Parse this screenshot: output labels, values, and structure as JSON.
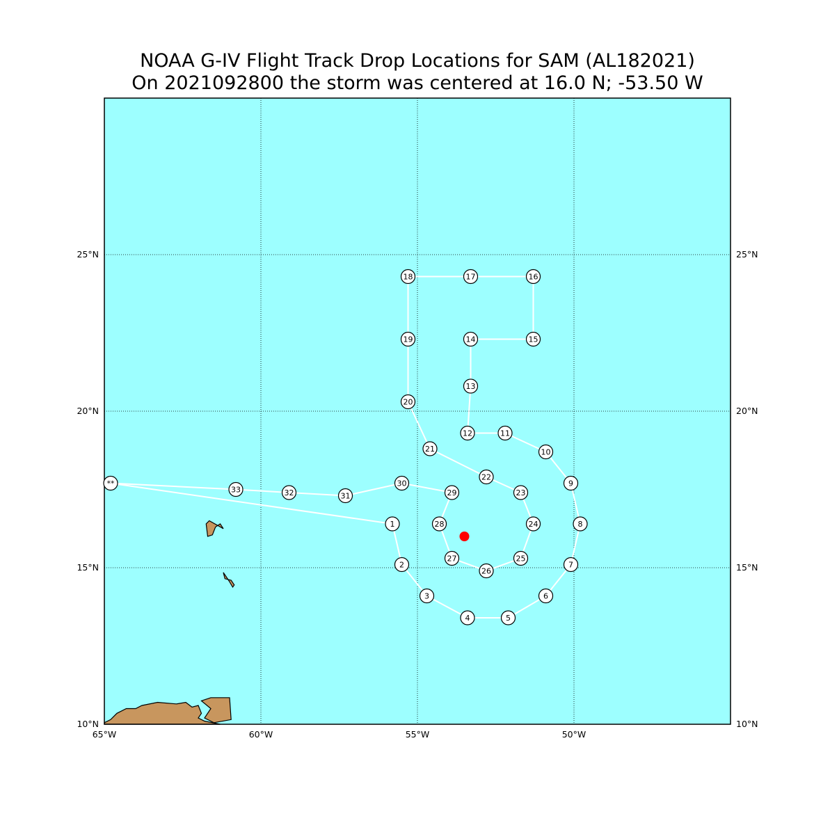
{
  "title": {
    "line1": "NOAA G-IV Flight Track Drop Locations for SAM (AL182021)",
    "line2": "On 2021092800 the storm was centered at 16.0 N; -53.50 W"
  },
  "axes": {
    "lon_range": [
      -65,
      -45
    ],
    "lat_range": [
      10,
      30
    ],
    "lon_ticks": [
      {
        "value": -65,
        "label": "65°W"
      },
      {
        "value": -60,
        "label": "60°W"
      },
      {
        "value": -55,
        "label": "55°W"
      },
      {
        "value": -50,
        "label": "50°W"
      }
    ],
    "lat_ticks": [
      {
        "value": 10,
        "label": "10°N"
      },
      {
        "value": 15,
        "label": "15°N"
      },
      {
        "value": 20,
        "label": "20°N"
      },
      {
        "value": 25,
        "label": "25°N"
      }
    ],
    "grid": "dotted"
  },
  "colors": {
    "ocean": "#9dffff",
    "land": "#c8965e",
    "track": "#ffffff",
    "storm_center": "#ff0000"
  },
  "storm_center": {
    "lat": 16.0,
    "lon": -53.5
  },
  "start_marker": {
    "label": "**",
    "lat": 17.7,
    "lon": -64.8
  },
  "drops": [
    {
      "label": "1",
      "lat": 16.4,
      "lon": -55.8
    },
    {
      "label": "2",
      "lat": 15.1,
      "lon": -55.5
    },
    {
      "label": "3",
      "lat": 14.1,
      "lon": -54.7
    },
    {
      "label": "4",
      "lat": 13.4,
      "lon": -53.4
    },
    {
      "label": "5",
      "lat": 13.4,
      "lon": -52.1
    },
    {
      "label": "6",
      "lat": 14.1,
      "lon": -50.9
    },
    {
      "label": "7",
      "lat": 15.1,
      "lon": -50.1
    },
    {
      "label": "8",
      "lat": 16.4,
      "lon": -49.8
    },
    {
      "label": "9",
      "lat": 17.7,
      "lon": -50.1
    },
    {
      "label": "10",
      "lat": 18.7,
      "lon": -50.9
    },
    {
      "label": "11",
      "lat": 19.3,
      "lon": -52.2
    },
    {
      "label": "12",
      "lat": 19.3,
      "lon": -53.4
    },
    {
      "label": "13",
      "lat": 20.8,
      "lon": -53.3
    },
    {
      "label": "14",
      "lat": 22.3,
      "lon": -53.3
    },
    {
      "label": "15",
      "lat": 22.3,
      "lon": -51.3
    },
    {
      "label": "16",
      "lat": 24.3,
      "lon": -51.3
    },
    {
      "label": "17",
      "lat": 24.3,
      "lon": -53.3
    },
    {
      "label": "18",
      "lat": 24.3,
      "lon": -55.3
    },
    {
      "label": "19",
      "lat": 22.3,
      "lon": -55.3
    },
    {
      "label": "20",
      "lat": 20.3,
      "lon": -55.3
    },
    {
      "label": "21",
      "lat": 18.8,
      "lon": -54.6
    },
    {
      "label": "22",
      "lat": 17.9,
      "lon": -52.8
    },
    {
      "label": "23",
      "lat": 17.4,
      "lon": -51.7
    },
    {
      "label": "24",
      "lat": 16.4,
      "lon": -51.3
    },
    {
      "label": "25",
      "lat": 15.3,
      "lon": -51.7
    },
    {
      "label": "26",
      "lat": 14.9,
      "lon": -52.8
    },
    {
      "label": "27",
      "lat": 15.3,
      "lon": -53.9
    },
    {
      "label": "28",
      "lat": 16.4,
      "lon": -54.3
    },
    {
      "label": "29",
      "lat": 17.4,
      "lon": -53.9
    },
    {
      "label": "30",
      "lat": 17.7,
      "lon": -55.5
    },
    {
      "label": "31",
      "lat": 17.3,
      "lon": -57.3
    },
    {
      "label": "32",
      "lat": 17.4,
      "lon": -59.1
    },
    {
      "label": "33",
      "lat": 17.5,
      "lon": -60.8
    }
  ],
  "track_order": [
    "**",
    "1",
    "2",
    "3",
    "4",
    "5",
    "6",
    "7",
    "8",
    "9",
    "10",
    "11",
    "12",
    "13",
    "14",
    "15",
    "16",
    "17",
    "18",
    "19",
    "20",
    "21",
    "22",
    "23",
    "24",
    "25",
    "26",
    "27",
    "28",
    "29",
    "30",
    "31",
    "32",
    "33",
    "**"
  ],
  "land": [
    {
      "name": "guadeloupe",
      "lonlat": [
        [
          -61.75,
          16.4
        ],
        [
          -61.7,
          16.0
        ],
        [
          -61.55,
          16.05
        ],
        [
          -61.45,
          16.3
        ],
        [
          -61.3,
          16.4
        ],
        [
          -61.2,
          16.25
        ],
        [
          -61.65,
          16.5
        ]
      ]
    },
    {
      "name": "martinique",
      "lonlat": [
        [
          -61.2,
          14.85
        ],
        [
          -61.15,
          14.65
        ],
        [
          -60.95,
          14.6
        ],
        [
          -60.85,
          14.45
        ],
        [
          -60.9,
          14.38
        ],
        [
          -61.0,
          14.55
        ],
        [
          -61.1,
          14.7
        ]
      ]
    },
    {
      "name": "venezuela-coast",
      "lonlat": [
        [
          -65.0,
          10.05
        ],
        [
          -64.8,
          10.15
        ],
        [
          -64.6,
          10.35
        ],
        [
          -64.3,
          10.5
        ],
        [
          -64.0,
          10.5
        ],
        [
          -63.8,
          10.6
        ],
        [
          -63.3,
          10.7
        ],
        [
          -62.7,
          10.65
        ],
        [
          -62.4,
          10.7
        ],
        [
          -62.2,
          10.55
        ],
        [
          -62.0,
          10.6
        ],
        [
          -61.9,
          10.35
        ],
        [
          -62.0,
          10.2
        ],
        [
          -61.8,
          10.1
        ],
        [
          -61.3,
          10.0
        ],
        [
          -65.0,
          10.0
        ]
      ]
    },
    {
      "name": "trinidad",
      "lonlat": [
        [
          -61.9,
          10.75
        ],
        [
          -61.6,
          10.85
        ],
        [
          -61.0,
          10.85
        ],
        [
          -60.95,
          10.15
        ],
        [
          -61.5,
          10.05
        ],
        [
          -61.8,
          10.2
        ],
        [
          -61.6,
          10.5
        ]
      ]
    }
  ]
}
